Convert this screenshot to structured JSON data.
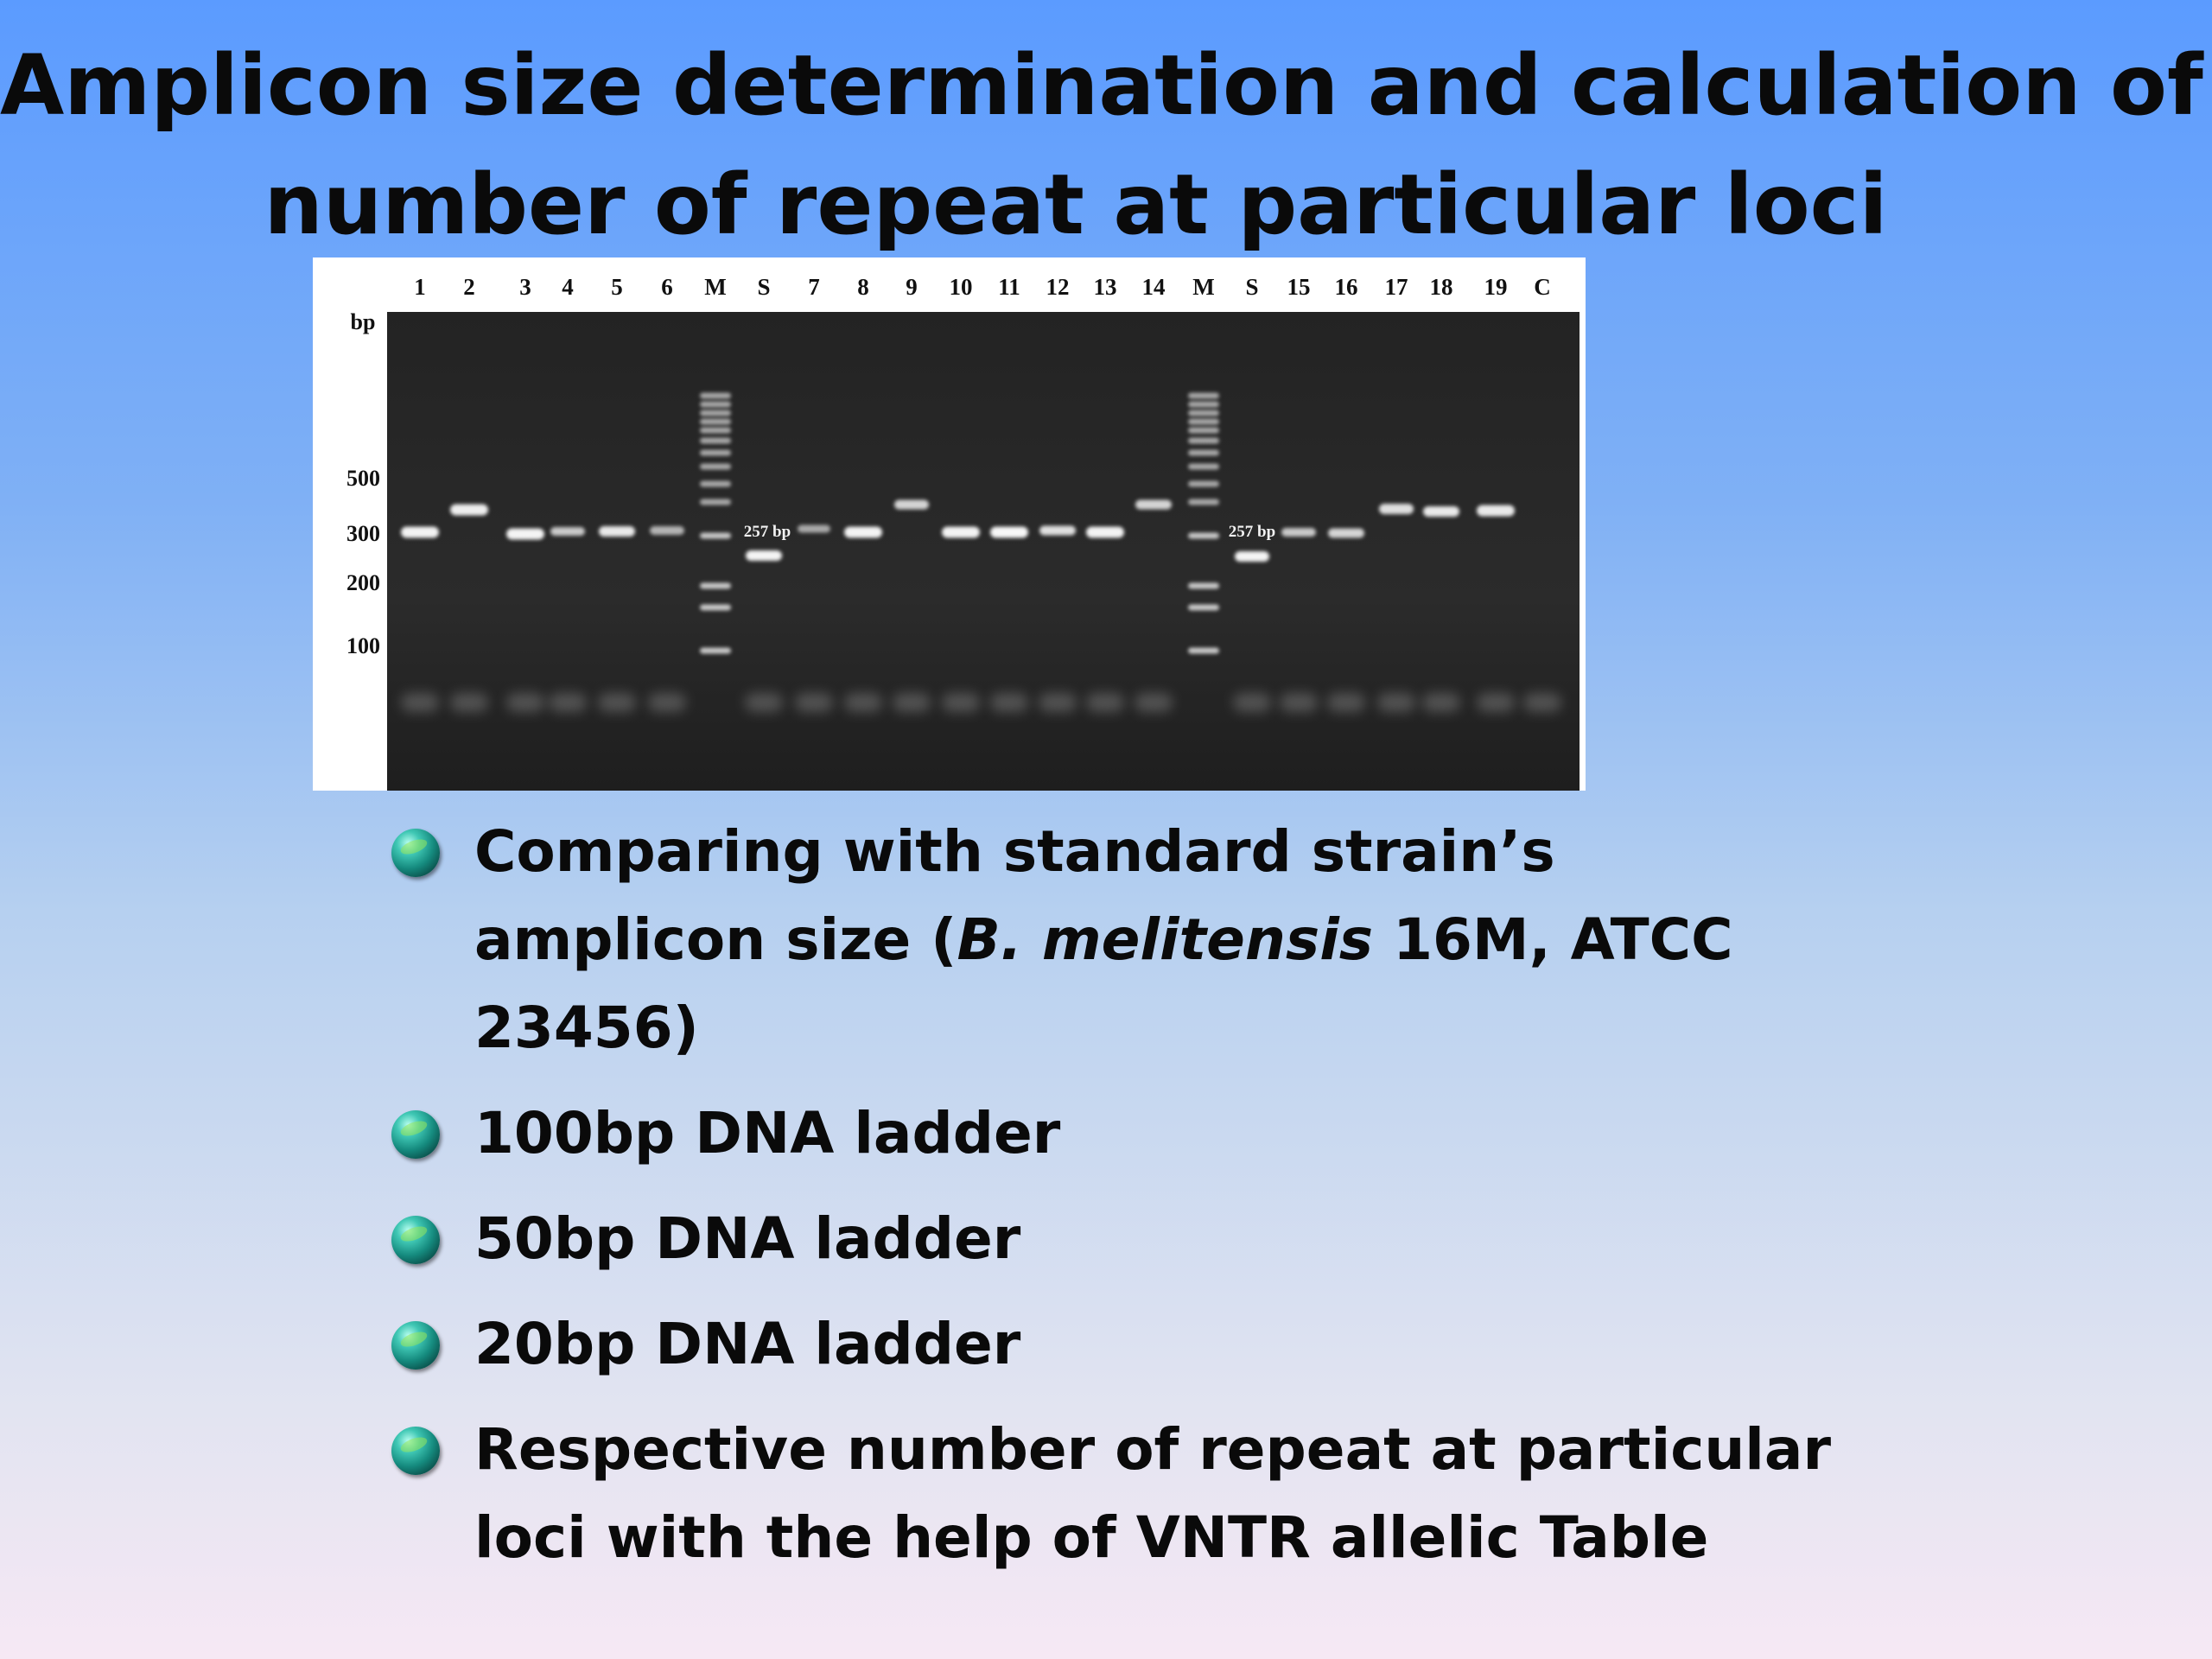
{
  "slide": {
    "title_line1": "Amplicon size determination and calculation of",
    "title_line2": "number of repeat at particular loci"
  },
  "gel": {
    "bp_unit": "bp",
    "size_markers": [
      "500",
      "300",
      "200",
      "100"
    ],
    "lanes": [
      "1",
      "2",
      "3",
      "4",
      "5",
      "6",
      "M",
      "S",
      "7",
      "8",
      "9",
      "10",
      "11",
      "12",
      "13",
      "14",
      "M",
      "S",
      "15",
      "16",
      "17",
      "18",
      "19",
      "C"
    ],
    "standard_band_label": "257 bp"
  },
  "bullets": {
    "item1_before": "Comparing with standard strain’s amplicon size (",
    "item1_italic": "B. melitensis",
    "item1_after": " 16M, ATCC 23456)",
    "item2": "100bp DNA ladder",
    "item3": "50bp DNA ladder",
    "item4": "20bp DNA ladder",
    "item5": "Respective number of repeat at particular loci with the help of VNTR allelic Table"
  }
}
